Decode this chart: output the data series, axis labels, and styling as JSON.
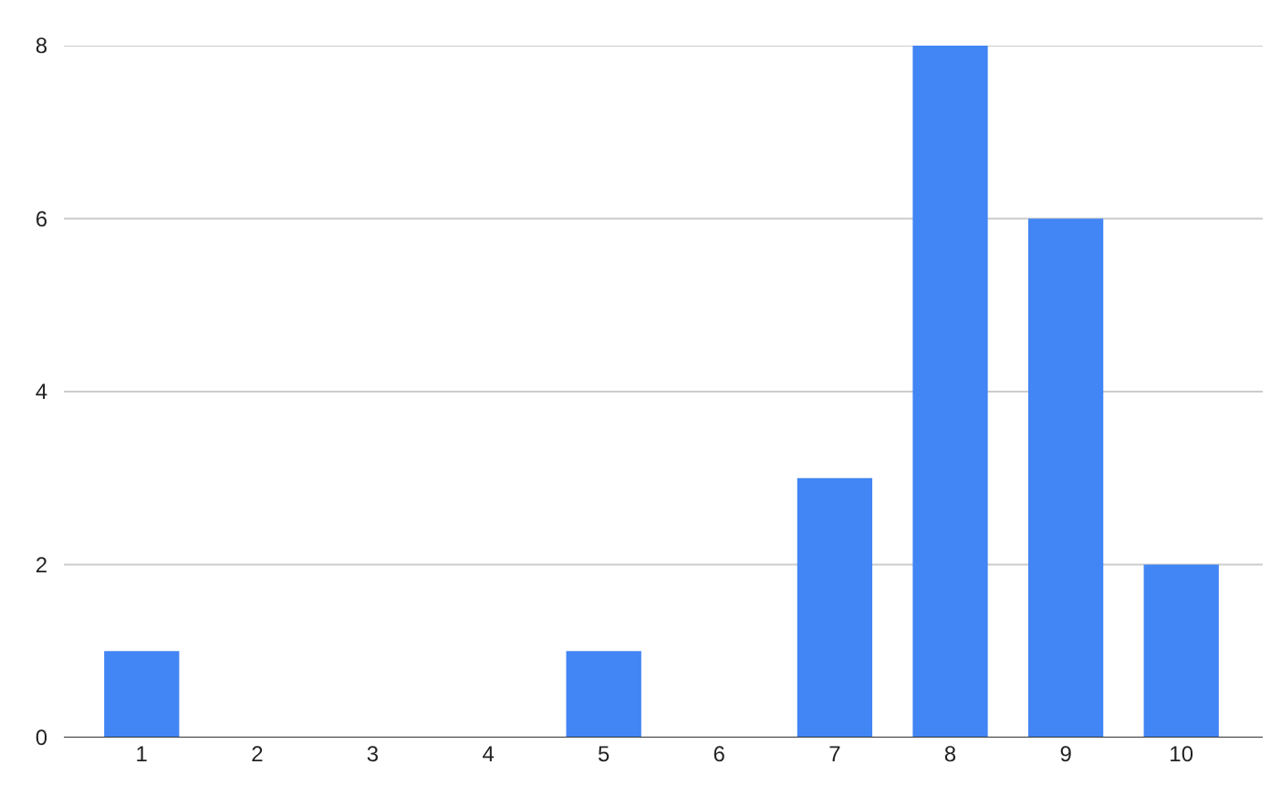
{
  "chart_data": {
    "type": "bar",
    "categories": [
      "1",
      "2",
      "3",
      "4",
      "5",
      "6",
      "7",
      "8",
      "9",
      "10"
    ],
    "values": [
      1,
      0,
      0,
      0,
      1,
      0,
      3,
      8,
      6,
      2
    ],
    "color": "#4285f4",
    "ylim": [
      0,
      8
    ],
    "yticks": [
      0,
      2,
      4,
      6,
      8
    ],
    "grid": "y"
  }
}
